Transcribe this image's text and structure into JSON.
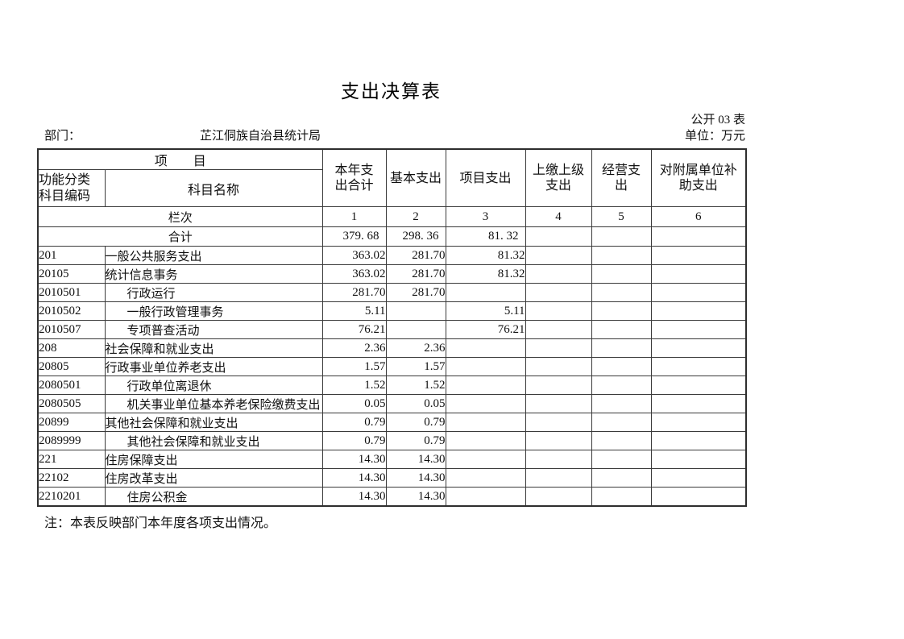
{
  "page": {
    "title": "支出决算表",
    "form_label": "公开 03 表",
    "department_label": "部门：",
    "department_value": "芷江侗族自治县统计局",
    "unit_label": "单位：万元",
    "note": "注：本表反映部门本年度各项支出情况。"
  },
  "table": {
    "header": {
      "project_group": "项　　目",
      "code_label": "功能分类\n科目编码",
      "subject_label": "科目名称",
      "columns": [
        "本年支\n出合计",
        "基本支出",
        "项目支出",
        "上缴上级\n支出",
        "经营支\n出",
        "对附属单位补\n助支出"
      ],
      "row_index_label": "栏次",
      "column_numbers": [
        "1",
        "2",
        "3",
        "4",
        "5",
        "6"
      ]
    },
    "total_row": {
      "label": "合计",
      "values": [
        "379. 68",
        "298. 36",
        "81. 32",
        "",
        "",
        ""
      ]
    },
    "rows": [
      {
        "code": "201",
        "name": "一般公共服务支出",
        "indent": false,
        "values": [
          "363.02",
          "281.70",
          "81.32",
          "",
          "",
          ""
        ]
      },
      {
        "code": "20105",
        "name": "统计信息事务",
        "indent": false,
        "values": [
          "363.02",
          "281.70",
          "81.32",
          "",
          "",
          ""
        ]
      },
      {
        "code": "2010501",
        "name": "行政运行",
        "indent": true,
        "values": [
          "281.70",
          "281.70",
          "",
          "",
          "",
          ""
        ]
      },
      {
        "code": "2010502",
        "name": "一般行政管理事务",
        "indent": true,
        "values": [
          "5.11",
          "",
          "5.11",
          "",
          "",
          ""
        ]
      },
      {
        "code": "2010507",
        "name": "专项普查活动",
        "indent": true,
        "values": [
          "76.21",
          "",
          "76.21",
          "",
          "",
          ""
        ]
      },
      {
        "code": "208",
        "name": "社会保障和就业支出",
        "indent": false,
        "values": [
          "2.36",
          "2.36",
          "",
          "",
          "",
          ""
        ]
      },
      {
        "code": "20805",
        "name": "行政事业单位养老支出",
        "indent": false,
        "values": [
          "1.57",
          "1.57",
          "",
          "",
          "",
          ""
        ]
      },
      {
        "code": "2080501",
        "name": "行政单位离退休",
        "indent": true,
        "values": [
          "1.52",
          "1.52",
          "",
          "",
          "",
          ""
        ]
      },
      {
        "code": "2080505",
        "name": "机关事业单位基本养老保险缴费支出",
        "indent": true,
        "values": [
          "0.05",
          "0.05",
          "",
          "",
          "",
          ""
        ]
      },
      {
        "code": "20899",
        "name": "其他社会保障和就业支出",
        "indent": false,
        "values": [
          "0.79",
          "0.79",
          "",
          "",
          "",
          ""
        ]
      },
      {
        "code": "2089999",
        "name": "其他社会保障和就业支出",
        "indent": true,
        "values": [
          "0.79",
          "0.79",
          "",
          "",
          "",
          ""
        ]
      },
      {
        "code": "221",
        "name": "住房保障支出",
        "indent": false,
        "values": [
          "14.30",
          "14.30",
          "",
          "",
          "",
          ""
        ]
      },
      {
        "code": "22102",
        "name": "住房改革支出",
        "indent": false,
        "values": [
          "14.30",
          "14.30",
          "",
          "",
          "",
          ""
        ]
      },
      {
        "code": "2210201",
        "name": "住房公积金",
        "indent": true,
        "values": [
          "14.30",
          "14.30",
          "",
          "",
          "",
          ""
        ]
      }
    ]
  }
}
